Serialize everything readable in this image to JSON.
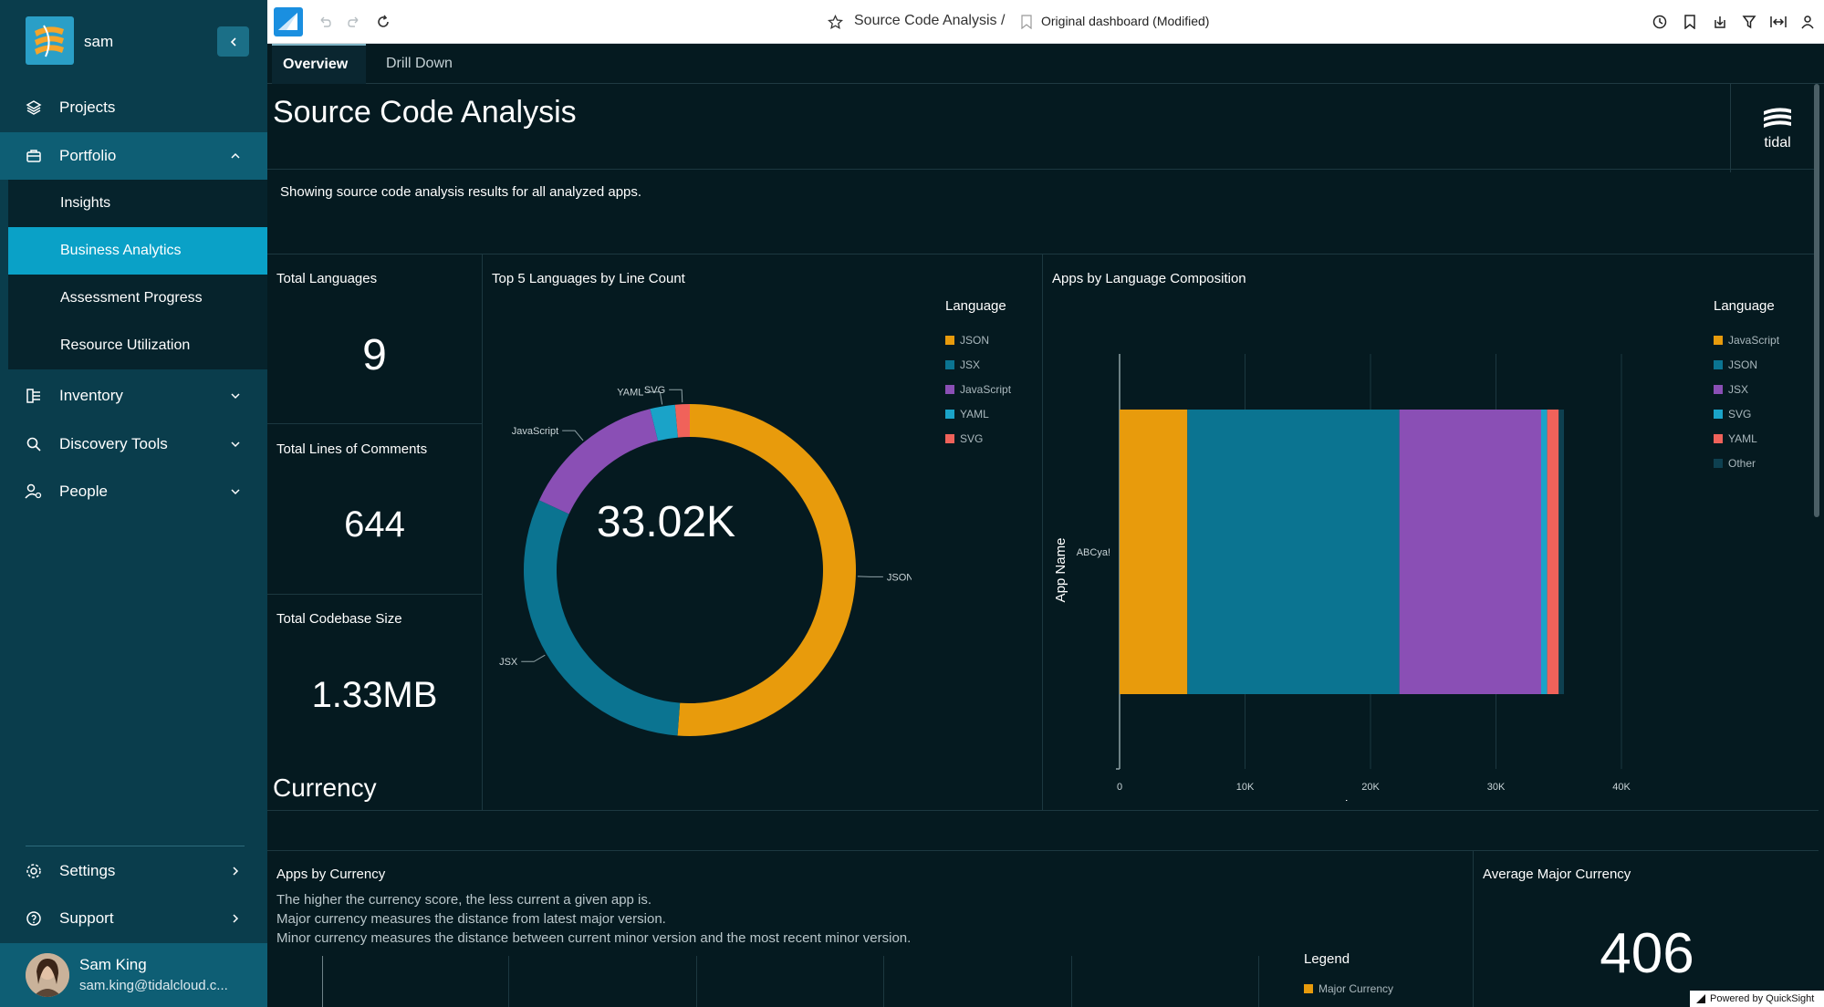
{
  "sidebar": {
    "user_short": "sam",
    "nav": [
      {
        "label": "Projects"
      },
      {
        "label": "Portfolio"
      },
      {
        "label": "Inventory"
      },
      {
        "label": "Discovery Tools"
      },
      {
        "label": "People"
      }
    ],
    "portfolio_sub": [
      {
        "label": "Insights"
      },
      {
        "label": "Business Analytics"
      },
      {
        "label": "Assessment Progress"
      },
      {
        "label": "Resource Utilization"
      }
    ],
    "bottom": [
      {
        "label": "Settings"
      },
      {
        "label": "Support"
      }
    ],
    "footer": {
      "name": "Sam King",
      "email": "sam.king@tidalcloud.c..."
    }
  },
  "topbar": {
    "analysis_name": "Source Code Analysis /",
    "dashboard_name": "Original dashboard (Modified)"
  },
  "tabs": [
    {
      "label": "Overview"
    },
    {
      "label": "Drill Down"
    }
  ],
  "page": {
    "title": "Source Code Analysis",
    "brand": "tidal",
    "description": "Showing source code analysis results for all analyzed apps."
  },
  "kpis": {
    "total_languages": {
      "title": "Total Languages",
      "value": "9"
    },
    "total_comments": {
      "title": "Total Lines of Comments",
      "value": "644"
    },
    "codebase_size": {
      "title": "Total Codebase Size",
      "value": "1.33MB"
    }
  },
  "donut": {
    "title": "Top 5 Languages by Line Count",
    "center_value": "33.02K",
    "legend_title": "Language"
  },
  "bar": {
    "title": "Apps by Language Composition",
    "legend_title": "Language",
    "ylabel": "App Name",
    "xlabel": "Line Count",
    "app": "ABCya!"
  },
  "currency": {
    "section_title": "Currency",
    "apps_title": "Apps by Currency",
    "lines": [
      "The higher the currency score, the less current a given app is.",
      "Major currency measures the distance from latest major version.",
      "Minor currency measures the distance between current minor version and the most recent minor version."
    ],
    "legend_title": "Legend",
    "legend_item": "Major Currency",
    "avg_title": "Average Major Currency",
    "avg_value": "406"
  },
  "footer_badge": "Powered by QuickSight",
  "colors": {
    "orange": "#e89b0c",
    "teal": "#0b7491",
    "purple": "#8a4fb5",
    "cyan": "#1aa3c8",
    "coral": "#f0625a",
    "dark": "#0e4050"
  },
  "chart_data": [
    {
      "type": "pie",
      "title": "Top 5 Languages by Line Count",
      "legend_title": "Language",
      "categories": [
        "JSON",
        "JSX",
        "JavaScript",
        "YAML",
        "SVG"
      ],
      "values": [
        16900,
        10150,
        4700,
        800,
        470
      ],
      "colors": [
        "#e89b0c",
        "#0b7491",
        "#8a4fb5",
        "#1aa3c8",
        "#f0625a"
      ],
      "center_label": "33.02K"
    },
    {
      "type": "bar",
      "orientation": "horizontal-stacked",
      "title": "Apps by Language Composition",
      "xlabel": "Line Count",
      "ylabel": "App Name",
      "categories": [
        "ABCya!"
      ],
      "xlim": [
        0,
        40000
      ],
      "xticks": [
        "0",
        "10K",
        "20K",
        "30K",
        "40K"
      ],
      "series": [
        {
          "name": "JavaScript",
          "values": [
            5400
          ],
          "color": "#e89b0c"
        },
        {
          "name": "JSON",
          "values": [
            16900
          ],
          "color": "#0b7491"
        },
        {
          "name": "JSX",
          "values": [
            11300
          ],
          "color": "#8a4fb5"
        },
        {
          "name": "SVG",
          "values": [
            480
          ],
          "color": "#1aa3c8"
        },
        {
          "name": "YAML",
          "values": [
            920
          ],
          "color": "#f0625a"
        },
        {
          "name": "Other",
          "values": [
            420
          ],
          "color": "#0e4050"
        }
      ]
    }
  ]
}
